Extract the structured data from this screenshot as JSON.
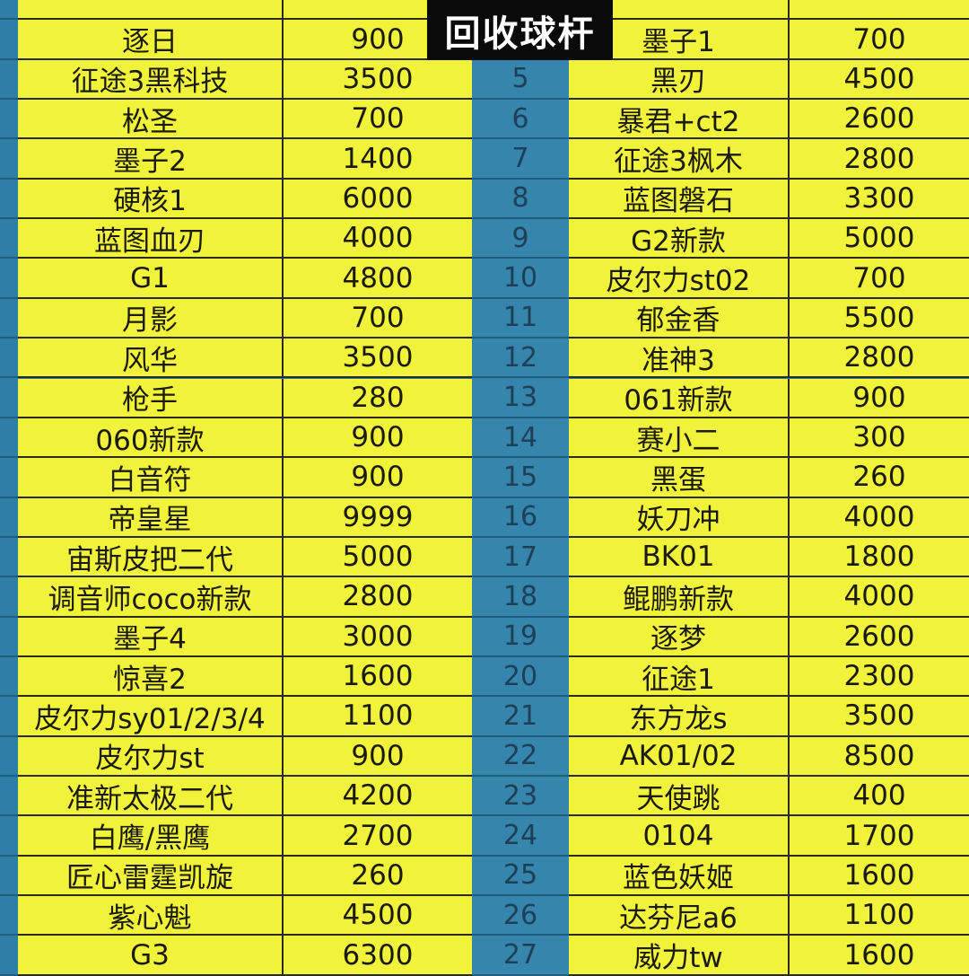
{
  "overlay_title": "回收球杆",
  "colors": {
    "cell_yellow": "#f1f23a",
    "index_blue": "#3585ac",
    "title_bg": "#0a0a0a"
  },
  "left": [
    {
      "name": "逐日",
      "price": "900"
    },
    {
      "name": "征途3黑科技",
      "price": "3500"
    },
    {
      "name": "松圣",
      "price": "700"
    },
    {
      "name": "墨子2",
      "price": "1400"
    },
    {
      "name": "硬核1",
      "price": "6000"
    },
    {
      "name": "蓝图血刃",
      "price": "4000"
    },
    {
      "name": "G1",
      "price": "4800"
    },
    {
      "name": "月影",
      "price": "700"
    },
    {
      "name": "风华",
      "price": "3500"
    },
    {
      "name": "枪手",
      "price": "280"
    },
    {
      "name": "060新款",
      "price": "900"
    },
    {
      "name": "白音符",
      "price": "900"
    },
    {
      "name": "帝皇星",
      "price": "9999"
    },
    {
      "name": "宙斯皮把二代",
      "price": "5000"
    },
    {
      "name": "调音师coco新款",
      "price": "2800"
    },
    {
      "name": "墨子4",
      "price": "3000"
    },
    {
      "name": "惊喜2",
      "price": "1600"
    },
    {
      "name": "皮尔力sy01/2/3/4",
      "price": "1100"
    },
    {
      "name": "皮尔力st",
      "price": "900"
    },
    {
      "name": "准新太极二代",
      "price": "4200"
    },
    {
      "name": "白鹰/黑鹰",
      "price": "2700"
    },
    {
      "name": "匠心雷霆凯旋",
      "price": "260"
    },
    {
      "name": "紫心魁",
      "price": "4500"
    },
    {
      "name": "G3",
      "price": "6300"
    }
  ],
  "right": [
    {
      "no": "",
      "name": "墨子1",
      "price": "700"
    },
    {
      "no": "5",
      "name": "黑刃",
      "price": "4500"
    },
    {
      "no": "6",
      "name": "暴君+ct2",
      "price": "2600"
    },
    {
      "no": "7",
      "name": "征途3枫木",
      "price": "2800"
    },
    {
      "no": "8",
      "name": "蓝图磐石",
      "price": "3300"
    },
    {
      "no": "9",
      "name": "G2新款",
      "price": "5000"
    },
    {
      "no": "10",
      "name": "皮尔力st02",
      "price": "700"
    },
    {
      "no": "11",
      "name": "郁金香",
      "price": "5500"
    },
    {
      "no": "12",
      "name": "准神3",
      "price": "2800"
    },
    {
      "no": "13",
      "name": "061新款",
      "price": "900"
    },
    {
      "no": "14",
      "name": "赛小二",
      "price": "300"
    },
    {
      "no": "15",
      "name": "黑蛋",
      "price": "260"
    },
    {
      "no": "16",
      "name": "妖刀冲",
      "price": "4000"
    },
    {
      "no": "17",
      "name": "BK01",
      "price": "1800"
    },
    {
      "no": "18",
      "name": "鲲鹏新款",
      "price": "4000"
    },
    {
      "no": "19",
      "name": "逐梦",
      "price": "2600"
    },
    {
      "no": "20",
      "name": "征途1",
      "price": "2300"
    },
    {
      "no": "21",
      "name": "东方龙s",
      "price": "3500"
    },
    {
      "no": "22",
      "name": "AK01/02",
      "price": "8500"
    },
    {
      "no": "23",
      "name": "天使跳",
      "price": "400"
    },
    {
      "no": "24",
      "name": "0104",
      "price": "1700"
    },
    {
      "no": "25",
      "name": "蓝色妖姬",
      "price": "1600"
    },
    {
      "no": "26",
      "name": "达芬尼a6",
      "price": "1100"
    },
    {
      "no": "27",
      "name": "威力tw",
      "price": "1600"
    }
  ]
}
